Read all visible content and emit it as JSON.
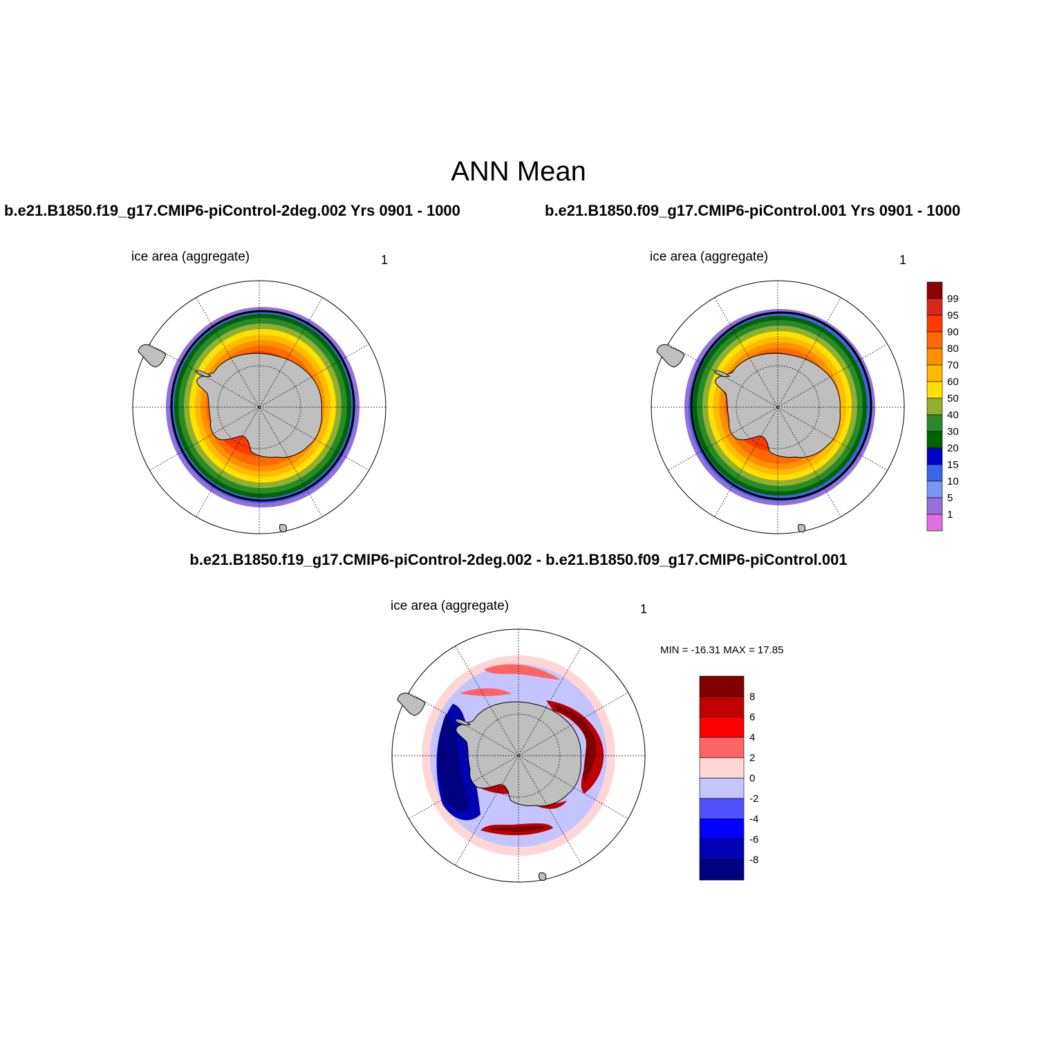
{
  "figure_title": "ANN Mean",
  "panels": [
    {
      "id": "top-left",
      "case_title": "b.e21.B1850.f19_g17.CMIP6-piControl-2deg.002  Yrs 0901 - 1000",
      "variable_label": "ice area  (aggregate)",
      "units": "1"
    },
    {
      "id": "top-right",
      "case_title": "b.e21.B1850.f09_g17.CMIP6-piControl.001  Yrs 0901 - 1000",
      "variable_label": "ice area  (aggregate)",
      "units": "1"
    },
    {
      "id": "bottom-diff",
      "case_title": "b.e21.B1850.f19_g17.CMIP6-piControl-2deg.002 - b.e21.B1850.f09_g17.CMIP6-piControl.001",
      "variable_label": "ice area  (aggregate)",
      "units": "1",
      "minmax_text": "MIN = -16.31 MAX =  17.85"
    }
  ],
  "concentration_colorbar": {
    "tick_labels": [
      "99",
      "95",
      "90",
      "80",
      "70",
      "60",
      "50",
      "40",
      "30",
      "20",
      "15",
      "10",
      "5",
      "1"
    ],
    "colors": [
      "#8b0000",
      "#d7261e",
      "#ff3a00",
      "#ff6a00",
      "#ff9000",
      "#ffbb00",
      "#ffe000",
      "#8fb030",
      "#2a8a2a",
      "#006400",
      "#0000c8",
      "#3c64e6",
      "#7896f0",
      "#9370db",
      "#e070e0"
    ]
  },
  "difference_colorbar": {
    "tick_labels": [
      "8",
      "6",
      "4",
      "2",
      "0",
      "-2",
      "-4",
      "-6",
      "-8"
    ],
    "colors": [
      "#800000",
      "#c00000",
      "#ff0000",
      "#ff6464",
      "#ffd6d6",
      "#c4c4ff",
      "#5050ff",
      "#0000ff",
      "#0000b4",
      "#000080"
    ]
  },
  "map": {
    "projection": "south polar stereographic",
    "land_color": "#bfbfbf",
    "ocean_color": "#ffffff"
  }
}
